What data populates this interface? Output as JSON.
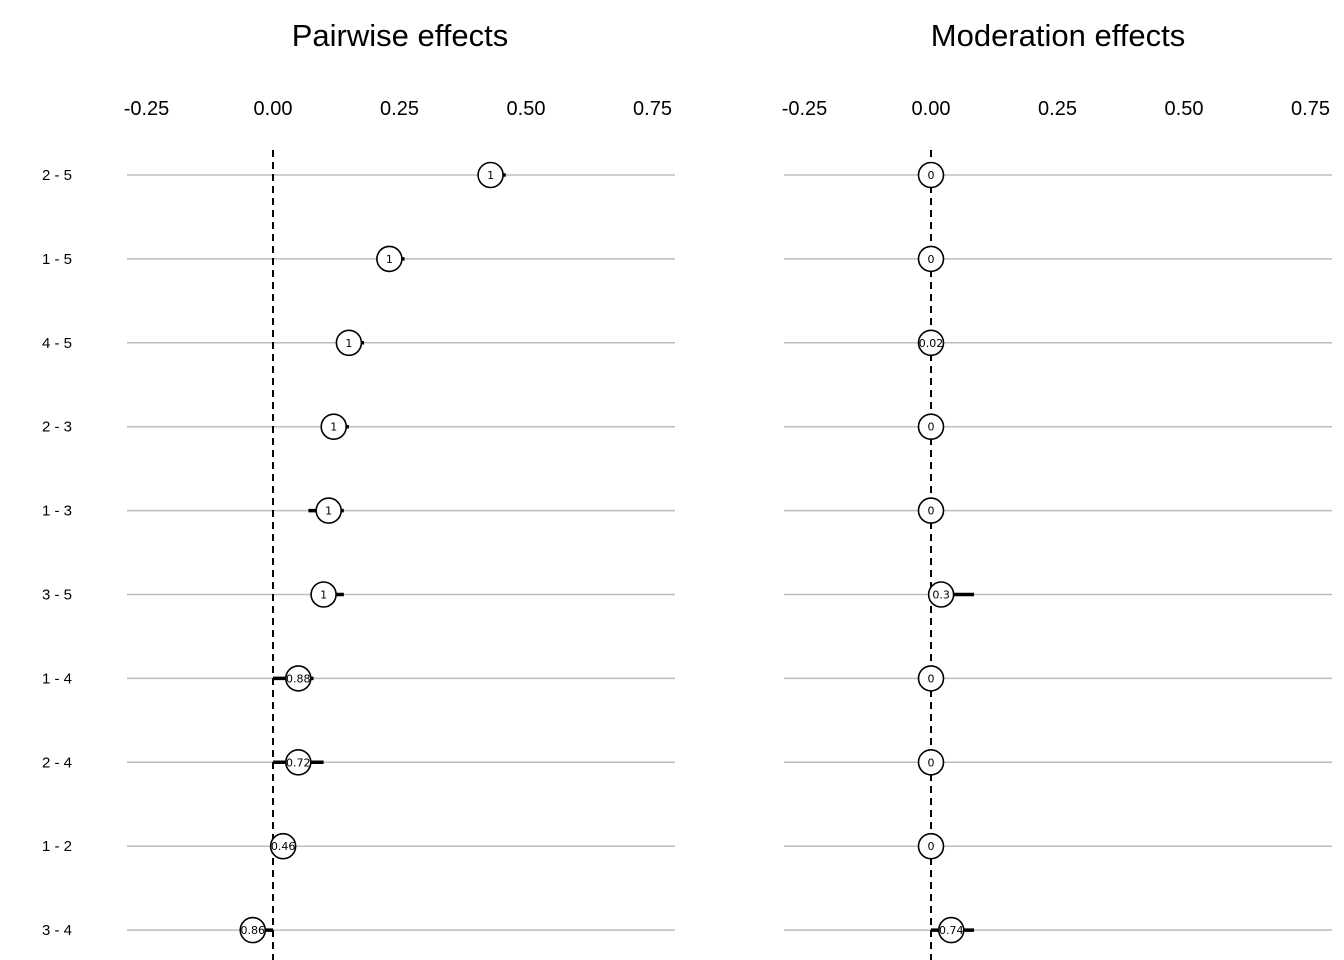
{
  "chart_data": [
    {
      "type": "scatter",
      "title": "Pairwise effects",
      "xlabel": "",
      "ylabel": "",
      "xlim": [
        -0.25,
        0.75
      ],
      "xticks": [
        "-0.25",
        "0.00",
        "0.25",
        "0.50",
        "0.75"
      ],
      "xtick_values": [
        -0.25,
        0,
        0.25,
        0.5,
        0.75
      ],
      "reference_line": 0,
      "grid": "horizontal",
      "rows": [
        {
          "label": "2 - 5",
          "value": 0.43,
          "lower": 0.405,
          "upper": 0.46,
          "point_label": "1"
        },
        {
          "label": "1 - 5",
          "value": 0.23,
          "lower": 0.21,
          "upper": 0.26,
          "point_label": "1"
        },
        {
          "label": "4 - 5",
          "value": 0.15,
          "lower": 0.125,
          "upper": 0.18,
          "point_label": "1"
        },
        {
          "label": "2 - 3",
          "value": 0.12,
          "lower": 0.095,
          "upper": 0.15,
          "point_label": "1"
        },
        {
          "label": "1 - 3",
          "value": 0.11,
          "lower": 0.07,
          "upper": 0.14,
          "point_label": "1"
        },
        {
          "label": "3 - 5",
          "value": 0.1,
          "lower": 0.08,
          "upper": 0.14,
          "point_label": "1"
        },
        {
          "label": "1 - 4",
          "value": 0.05,
          "lower": 0.0,
          "upper": 0.08,
          "point_label": "0.88"
        },
        {
          "label": "2 - 4",
          "value": 0.05,
          "lower": 0.0,
          "upper": 0.1,
          "point_label": "0.72"
        },
        {
          "label": "1 - 2",
          "value": 0.02,
          "lower": 0.005,
          "upper": 0.04,
          "point_label": "0.46"
        },
        {
          "label": "3 - 4",
          "value": -0.04,
          "lower": -0.065,
          "upper": 0.0,
          "point_label": "0.86"
        }
      ]
    },
    {
      "type": "scatter",
      "title": "Moderation effects",
      "xlabel": "",
      "ylabel": "",
      "xlim": [
        -0.25,
        0.75
      ],
      "xticks": [
        "-0.25",
        "0.00",
        "0.25",
        "0.50",
        "0.75"
      ],
      "xtick_values": [
        -0.25,
        0,
        0.25,
        0.5,
        0.75
      ],
      "reference_line": 0,
      "grid": "horizontal",
      "rows": [
        {
          "label": "2 - 5",
          "value": 0.0,
          "lower": 0.0,
          "upper": 0.0,
          "point_label": "0"
        },
        {
          "label": "1 - 5",
          "value": 0.0,
          "lower": 0.0,
          "upper": 0.0,
          "point_label": "0"
        },
        {
          "label": "4 - 5",
          "value": 0.0,
          "lower": -0.005,
          "upper": 0.005,
          "point_label": "0.02"
        },
        {
          "label": "2 - 3",
          "value": 0.0,
          "lower": 0.0,
          "upper": 0.0,
          "point_label": "0"
        },
        {
          "label": "1 - 3",
          "value": 0.0,
          "lower": 0.0,
          "upper": 0.0,
          "point_label": "0"
        },
        {
          "label": "3 - 5",
          "value": 0.02,
          "lower": 0.0,
          "upper": 0.085,
          "point_label": "0.3"
        },
        {
          "label": "1 - 4",
          "value": 0.0,
          "lower": 0.0,
          "upper": 0.0,
          "point_label": "0"
        },
        {
          "label": "2 - 4",
          "value": 0.0,
          "lower": 0.0,
          "upper": 0.0,
          "point_label": "0"
        },
        {
          "label": "1 - 2",
          "value": 0.0,
          "lower": 0.0,
          "upper": 0.0,
          "point_label": "0"
        },
        {
          "label": "3 - 4",
          "value": 0.04,
          "lower": 0.0,
          "upper": 0.085,
          "point_label": "0.74"
        }
      ]
    }
  ]
}
